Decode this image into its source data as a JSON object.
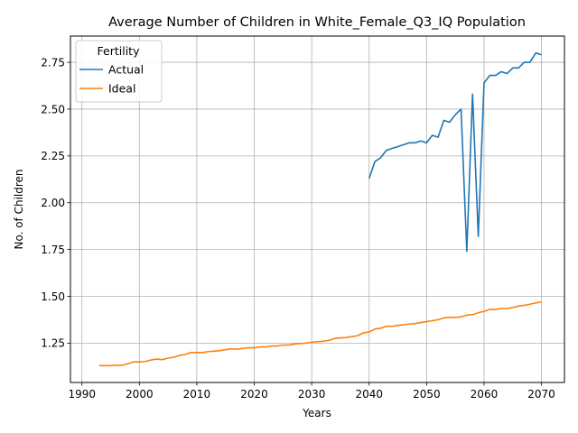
{
  "chart_data": {
    "type": "line",
    "title": "Average Number of Children in White_Female_Q3_IQ Population",
    "xlabel": "Years",
    "ylabel": "No. of Children",
    "xlim": [
      1988,
      2074
    ],
    "ylim": [
      1.04,
      2.89
    ],
    "xticks": [
      1990,
      2000,
      2010,
      2020,
      2030,
      2040,
      2050,
      2060,
      2070
    ],
    "yticks": [
      1.25,
      1.5,
      1.75,
      2.0,
      2.25,
      2.5,
      2.75
    ],
    "xtick_labels": [
      "1990",
      "2000",
      "2010",
      "2020",
      "2030",
      "2040",
      "2050",
      "2060",
      "2070"
    ],
    "ytick_labels": [
      "1.25",
      "1.50",
      "1.75",
      "2.00",
      "2.25",
      "2.50",
      "2.75"
    ],
    "grid": true,
    "legend": {
      "title": "Fertility",
      "position": "top-left"
    },
    "series": [
      {
        "name": "Actual",
        "color": "#1f77b4",
        "x": [
          2040,
          2041,
          2042,
          2043,
          2044,
          2045,
          2046,
          2047,
          2048,
          2049,
          2050,
          2051,
          2052,
          2053,
          2054,
          2055,
          2056,
          2057,
          2058,
          2059,
          2060,
          2061,
          2062,
          2063,
          2064,
          2065,
          2066,
          2067,
          2068,
          2069,
          2070
        ],
        "values": [
          2.13,
          2.22,
          2.24,
          2.28,
          2.29,
          2.3,
          2.31,
          2.32,
          2.32,
          2.33,
          2.32,
          2.36,
          2.35,
          2.44,
          2.43,
          2.47,
          2.5,
          1.74,
          2.58,
          1.82,
          2.64,
          2.68,
          2.68,
          2.7,
          2.69,
          2.72,
          2.72,
          2.75,
          2.75,
          2.8,
          2.79
        ]
      },
      {
        "name": "Ideal",
        "color": "#ff7f0e",
        "x": [
          1993,
          1994,
          1995,
          1996,
          1997,
          1998,
          1999,
          2000,
          2001,
          2002,
          2003,
          2004,
          2005,
          2006,
          2007,
          2008,
          2009,
          2010,
          2011,
          2012,
          2013,
          2014,
          2015,
          2016,
          2017,
          2018,
          2019,
          2020,
          2021,
          2022,
          2023,
          2024,
          2025,
          2026,
          2027,
          2028,
          2029,
          2030,
          2031,
          2032,
          2033,
          2034,
          2035,
          2036,
          2037,
          2038,
          2039,
          2040,
          2041,
          2042,
          2043,
          2044,
          2045,
          2046,
          2047,
          2048,
          2049,
          2050,
          2051,
          2052,
          2053,
          2054,
          2055,
          2056,
          2057,
          2058,
          2059,
          2060,
          2061,
          2062,
          2063,
          2064,
          2065,
          2066,
          2067,
          2068,
          2069,
          2070
        ],
        "values": [
          1.13,
          1.13,
          1.13,
          1.132,
          1.132,
          1.14,
          1.15,
          1.15,
          1.152,
          1.16,
          1.165,
          1.162,
          1.17,
          1.175,
          1.185,
          1.19,
          1.2,
          1.2,
          1.2,
          1.205,
          1.207,
          1.21,
          1.215,
          1.22,
          1.218,
          1.222,
          1.225,
          1.225,
          1.23,
          1.23,
          1.235,
          1.235,
          1.24,
          1.24,
          1.245,
          1.248,
          1.25,
          1.255,
          1.258,
          1.26,
          1.265,
          1.275,
          1.278,
          1.28,
          1.285,
          1.29,
          1.305,
          1.31,
          1.325,
          1.33,
          1.34,
          1.34,
          1.345,
          1.348,
          1.352,
          1.355,
          1.36,
          1.365,
          1.37,
          1.375,
          1.385,
          1.388,
          1.388,
          1.39,
          1.4,
          1.402,
          1.412,
          1.42,
          1.43,
          1.43,
          1.435,
          1.435,
          1.44,
          1.448,
          1.452,
          1.458,
          1.465,
          1.47
        ]
      }
    ]
  }
}
